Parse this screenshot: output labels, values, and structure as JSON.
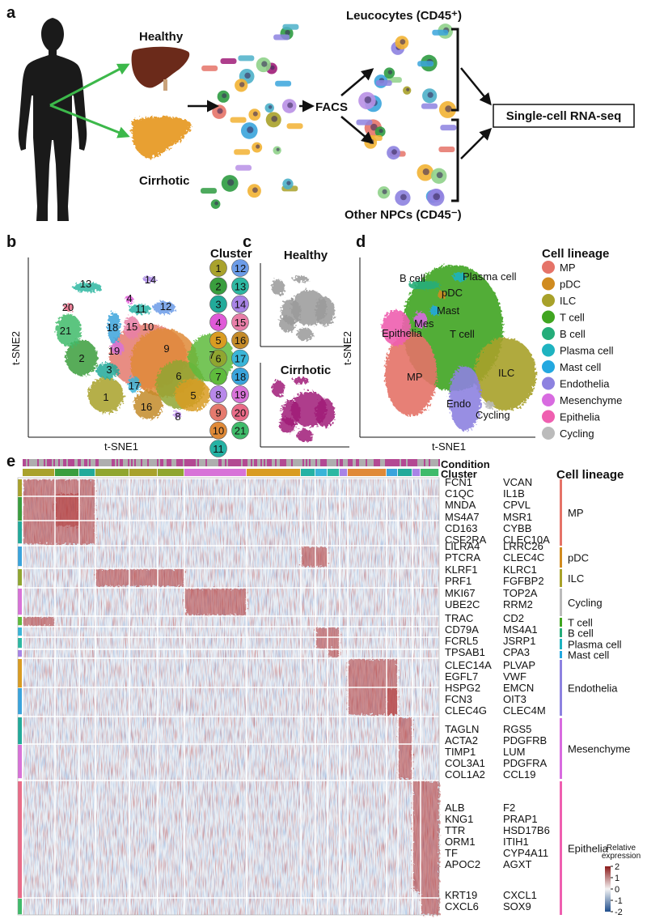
{
  "panel_a": {
    "letter": "a",
    "healthy": "Healthy",
    "cirrhotic": "Cirrhotic",
    "facs": "FACS",
    "leucocytes": "Leucocytes (CD45⁺)",
    "other": "Other NPCs (CD45⁻)",
    "rnaseq": "Single-cell RNA-seq"
  },
  "panel_b": {
    "letter": "b",
    "legend_title": "Cluster",
    "xlabel": "t-SNE1",
    "ylabel": "t-SNE2",
    "clusters": [
      {
        "label": "1",
        "color": "#a9a22c"
      },
      {
        "label": "2",
        "color": "#3a9e3e"
      },
      {
        "label": "3",
        "color": "#22aa9a"
      },
      {
        "label": "4",
        "color": "#e05ad8"
      },
      {
        "label": "5",
        "color": "#d99c22"
      },
      {
        "label": "6",
        "color": "#90a630"
      },
      {
        "label": "7",
        "color": "#5fbb3c"
      },
      {
        "label": "8",
        "color": "#b888ea"
      },
      {
        "label": "9",
        "color": "#e57a6e"
      },
      {
        "label": "10",
        "color": "#e08a38"
      },
      {
        "label": "11",
        "color": "#25b2a4"
      },
      {
        "label": "12",
        "color": "#6c9ce8"
      },
      {
        "label": "13",
        "color": "#2db8a2"
      },
      {
        "label": "14",
        "color": "#a884e6"
      },
      {
        "label": "15",
        "color": "#e87fa8"
      },
      {
        "label": "16",
        "color": "#c48b2a"
      },
      {
        "label": "17",
        "color": "#3ab5d8"
      },
      {
        "label": "18",
        "color": "#3aa4dc"
      },
      {
        "label": "19",
        "color": "#d873d8"
      },
      {
        "label": "20",
        "color": "#e96c88"
      },
      {
        "label": "21",
        "color": "#3fbb6a"
      }
    ]
  },
  "panel_c": {
    "letter": "c",
    "healthy": "Healthy",
    "cirrhotic": "Cirrhotic",
    "healthy_color": "#9a9a9a",
    "cirrhotic_color": "#a01c78"
  },
  "panel_d": {
    "letter": "d",
    "legend_title": "Cell lineage",
    "xlabel": "t-SNE1",
    "ylabel": "t-SNE2",
    "lineages": [
      {
        "name": "MP",
        "color": "#e57368"
      },
      {
        "name": "pDC",
        "color": "#d08b20"
      },
      {
        "name": "ILC",
        "color": "#a8a12a"
      },
      {
        "name": "T cell",
        "color": "#40a520"
      },
      {
        "name": "B cell",
        "color": "#25ad7a"
      },
      {
        "name": "Plasma cell",
        "color": "#1fb3c0"
      },
      {
        "name": "Mast cell",
        "color": "#23a8e0"
      },
      {
        "name": "Endothelia",
        "color": "#8d82e0"
      },
      {
        "name": "Mesenchyme",
        "color": "#d86be0"
      },
      {
        "name": "Epithelia",
        "color": "#ef5fb0"
      },
      {
        "name": "Cycling",
        "color": "#bbbbbb"
      }
    ],
    "plot_labels": [
      "B cell",
      "Plasma cell",
      "pDC",
      "Mast",
      "Mes",
      "Epithelia",
      "T cell",
      "MP",
      "ILC",
      "Endo",
      "Cycling"
    ]
  },
  "panel_e": {
    "letter": "e",
    "condition": "Condition",
    "cluster": "Cluster",
    "legend_title": "Cell lineage",
    "genes": [
      [
        "FCN1",
        "VCAN"
      ],
      [
        "C1QC",
        "IL1B"
      ],
      [
        "MNDA",
        "CPVL"
      ],
      [
        "MS4A7",
        "MSR1"
      ],
      [
        "CD163",
        "CYBB"
      ],
      [
        "CSF2RA",
        "CLEC10A"
      ],
      [
        "LILRA4",
        "LRRC26"
      ],
      [
        "PTCRA",
        "CLEC4C"
      ],
      [
        "KLRF1",
        "KLRC1"
      ],
      [
        "PRF1",
        "FGFBP2"
      ],
      [
        "MKI67",
        "TOP2A"
      ],
      [
        "UBE2C",
        "RRM2"
      ],
      [
        "TRAC",
        "CD2"
      ],
      [
        "CD79A",
        "MS4A1"
      ],
      [
        "FCRL5",
        "JSRP1"
      ],
      [
        "TPSAB1",
        "CPA3"
      ],
      [
        "CLEC14A",
        "PLVAP"
      ],
      [
        "EGFL7",
        "VWF"
      ],
      [
        "HSPG2",
        "EMCN"
      ],
      [
        "FCN3",
        "OIT3"
      ],
      [
        "CLEC4G",
        "CLEC4M"
      ],
      [
        "TAGLN",
        "RGS5"
      ],
      [
        "ACTA2",
        "PDGFRB"
      ],
      [
        "TIMP1",
        "LUM"
      ],
      [
        "COL3A1",
        "PDGFRA"
      ],
      [
        "COL1A2",
        "CCL19"
      ],
      [
        "ALB",
        "F2"
      ],
      [
        "KNG1",
        "PRAP1"
      ],
      [
        "TTR",
        "HSD17B6"
      ],
      [
        "ORM1",
        "ITIH1"
      ],
      [
        "TF",
        "CYP4A11"
      ],
      [
        "APOC2",
        "AGXT"
      ],
      [
        "KRT19",
        "CXCL1"
      ],
      [
        "CXCL6",
        "SOX9"
      ]
    ],
    "lineages": [
      "MP",
      "pDC",
      "ILC",
      "Cycling",
      "T cell",
      "B cell",
      "Plasma cell",
      "Mast cell",
      "Endothelia",
      "Mesenchyme",
      "Epithelia"
    ],
    "colorbar": {
      "title": [
        "Relative",
        "expression"
      ],
      "lim": [
        -2,
        2
      ],
      "ticks": [
        2,
        1,
        0,
        -1,
        -2
      ],
      "low": "#1f4e8c",
      "mid": "#f4f4f4",
      "high": "#8b1a1a"
    }
  }
}
